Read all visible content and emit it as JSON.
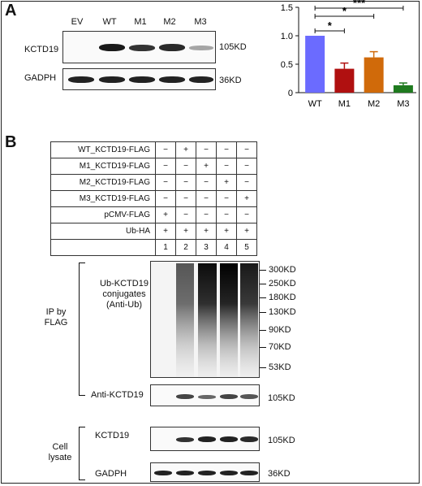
{
  "panel_a": {
    "letter": "A",
    "lane_labels": [
      "EV",
      "WT",
      "M1",
      "M2",
      "M3"
    ],
    "rows": [
      {
        "label": "KCTD19",
        "size": "105KD"
      },
      {
        "label": "GADPH",
        "size": "36KD"
      }
    ]
  },
  "chart_data": {
    "type": "bar",
    "categories": [
      "WT",
      "M1",
      "M2",
      "M3"
    ],
    "values": [
      1.0,
      0.42,
      0.62,
      0.13
    ],
    "errors": [
      0,
      0.1,
      0.1,
      0.04
    ],
    "colors": [
      "#6b6bff",
      "#b01010",
      "#d06a0a",
      "#1e7a1e"
    ],
    "ylim": [
      0,
      1.5
    ],
    "yticks": [
      "0",
      "0.5",
      "1.0",
      "1.5"
    ],
    "significance": [
      {
        "from": "WT",
        "to": "M1",
        "label": "*"
      },
      {
        "from": "WT",
        "to": "M2",
        "label": "*"
      },
      {
        "from": "WT",
        "to": "M3",
        "label": "***"
      }
    ]
  },
  "panel_b": {
    "letter": "B",
    "conditions": [
      {
        "label": "WT_KCTD19-FLAG",
        "values": [
          "−",
          "+",
          "−",
          "−",
          "−"
        ]
      },
      {
        "label": "M1_KCTD19-FLAG",
        "values": [
          "−",
          "−",
          "+",
          "−",
          "−"
        ]
      },
      {
        "label": "M2_KCTD19-FLAG",
        "values": [
          "−",
          "−",
          "−",
          "+",
          "−"
        ]
      },
      {
        "label": "M3_KCTD19-FLAG",
        "values": [
          "−",
          "−",
          "−",
          "−",
          "+"
        ]
      },
      {
        "label": "pCMV-FLAG",
        "values": [
          "+",
          "−",
          "−",
          "−",
          "−"
        ]
      },
      {
        "label": "Ub-HA",
        "values": [
          "+",
          "+",
          "+",
          "+",
          "+"
        ]
      }
    ],
    "lane_numbers": [
      "1",
      "2",
      "3",
      "4",
      "5"
    ],
    "ub_label": [
      "Ub-KCTD19",
      "conjugates",
      "(Anti-Ub)"
    ],
    "ip_label": [
      "IP by",
      "FLAG"
    ],
    "markers": [
      "300KD",
      "250KD",
      "180KD",
      "130KD",
      "90KD",
      "70KD",
      "53KD"
    ],
    "anti_kctd19": {
      "label": "Anti-KCTD19",
      "size": "105KD"
    },
    "cell_lysate": {
      "label": [
        "Cell",
        "lysate"
      ],
      "rows": [
        {
          "label": "KCTD19",
          "size": "105KD"
        },
        {
          "label": "GADPH",
          "size": "36KD"
        }
      ]
    }
  }
}
